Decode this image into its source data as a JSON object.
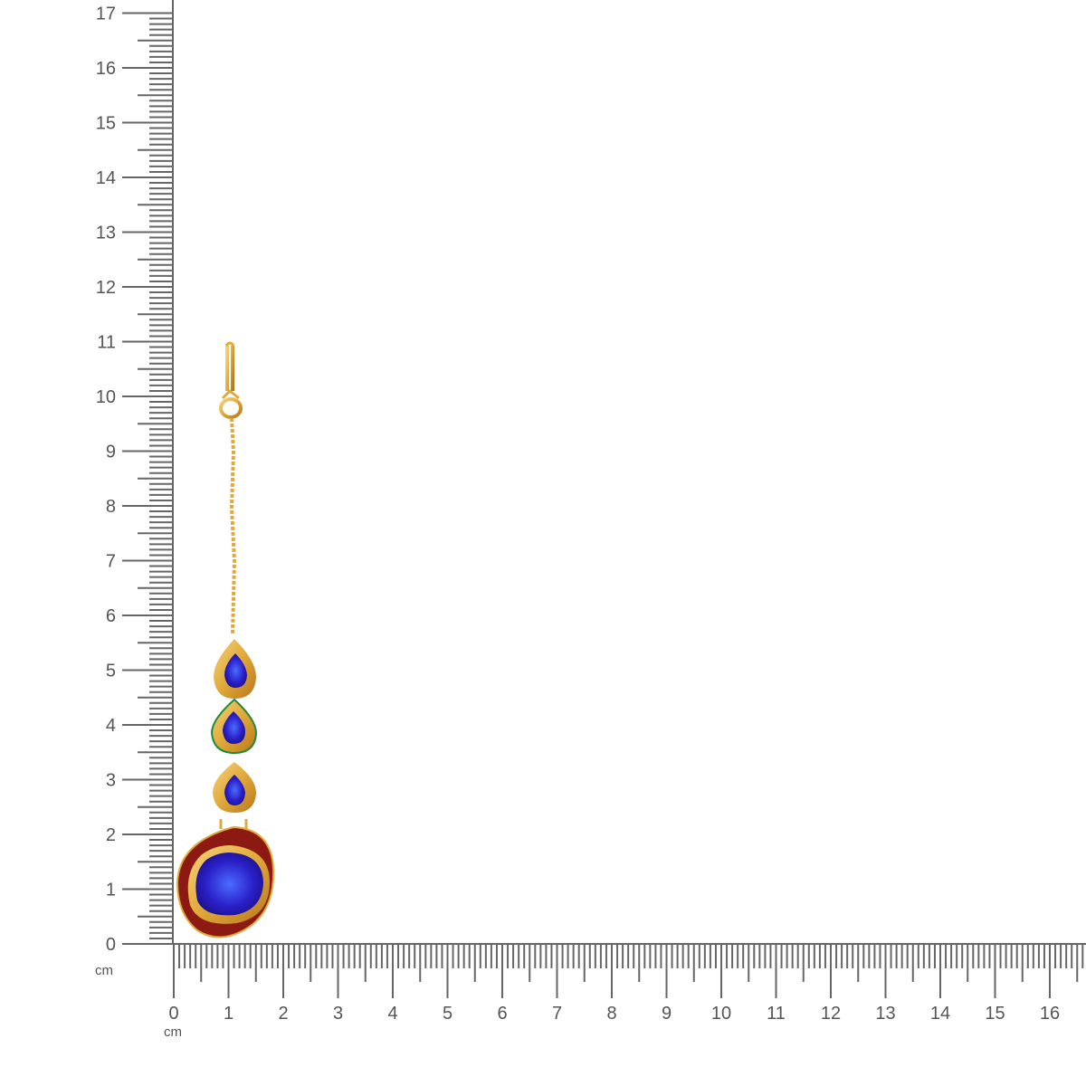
{
  "ruler": {
    "unit": "cm",
    "vertical_labels": [
      "0",
      "1",
      "2",
      "3",
      "4",
      "5",
      "6",
      "7",
      "8",
      "9",
      "10",
      "11",
      "12",
      "13",
      "14",
      "15",
      "16",
      "17"
    ],
    "horizontal_labels": [
      "0",
      "1",
      "2",
      "3",
      "4",
      "5",
      "6",
      "7",
      "8",
      "9",
      "10",
      "11",
      "12",
      "13",
      "14",
      "15",
      "16"
    ],
    "tick_color": "#666666"
  },
  "product": {
    "type": "maang tikka earring",
    "length_cm": 11,
    "colors": {
      "gold": "#e0a93a",
      "stone": "#2a1fc8",
      "enamel": "#8c1a12",
      "accent_green": "#1e8a3a"
    }
  }
}
